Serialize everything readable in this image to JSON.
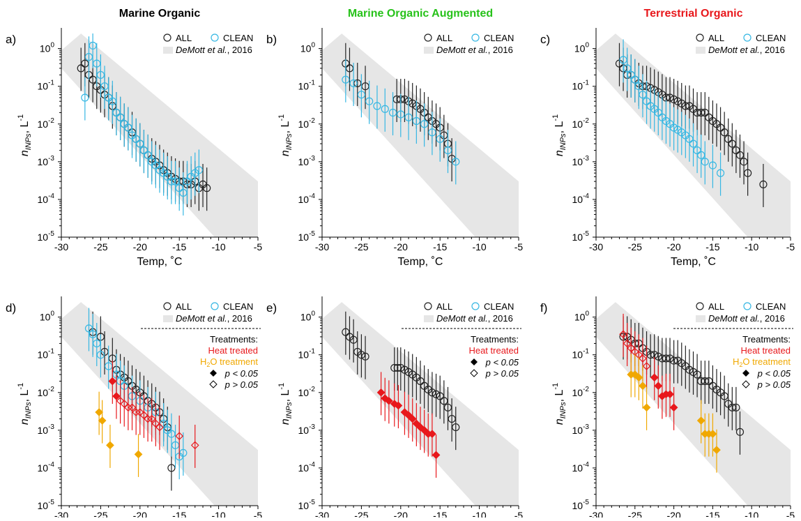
{
  "colors": {
    "all": "#222222",
    "clean": "#35b7e3",
    "heat": "#e8181c",
    "h2o2": "#f0a800",
    "band": "#e6e6e6",
    "title_green": "#27c21a",
    "title_red": "#e8181c",
    "title_black": "#000000"
  },
  "titles": {
    "col1": "Marine Organic",
    "col2": "Marine Organic Augmented",
    "col3": "Terrestrial  Organic"
  },
  "legend": {
    "all": "ALL",
    "clean": "CLEAN",
    "demott_name": "DeMott et al.",
    "demott_year": ", 2016",
    "treatments": "Treatments:",
    "heat": "Heat treated",
    "h2o2_prefix": "H",
    "h2o2_sub": "2",
    "h2o2_mid": "O",
    "h2o2_suffix": " treatment",
    "p_sig": "p < 0.05",
    "p_ns": "p > 0.05"
  },
  "axes": {
    "xlabel": "Temp, ˚C",
    "ylabel_n": "n",
    "ylabel_sub": "INPs",
    "ylabel_unit": ", L",
    "ylabel_exp": "-1",
    "xticks": [
      -30,
      -25,
      -20,
      -15,
      -10,
      -5
    ],
    "yticks": [
      "10",
      "10",
      "10",
      "10",
      "10",
      "10"
    ],
    "yexps": [
      "0",
      "-1",
      "-2",
      "-3",
      "-4",
      "-5"
    ]
  },
  "chart_data": [
    {
      "panel": "a)",
      "title": "Marine Organic",
      "type": "scatter",
      "xlim": [
        -30,
        -5
      ],
      "ylim_log10": [
        -5,
        0.4
      ],
      "yscale": "log",
      "band_demott": {
        "upper": [
          [
            -30,
            1.5
          ],
          [
            -11,
            0.0003
          ]
        ],
        "lower": [
          [
            -26,
            1e-05
          ],
          [
            -29,
            0.1
          ]
        ]
      },
      "series": [
        {
          "name": "ALL",
          "marker": "open-circle",
          "x": [
            -27.5,
            -27,
            -26.5,
            -26,
            -25.5,
            -25,
            -24.5,
            -24,
            -23.5,
            -23,
            -22.5,
            -22,
            -21.5,
            -21,
            -20.5,
            -20,
            -19.5,
            -19,
            -18.5,
            -18,
            -17.5,
            -17,
            -16.5,
            -16,
            -15.5,
            -15,
            -14.5,
            -14,
            -13.5,
            -13,
            -12.5,
            -12,
            -11.5
          ],
          "y": [
            0.3,
            0.4,
            0.2,
            0.15,
            0.1,
            0.08,
            0.06,
            0.05,
            0.03,
            0.02,
            0.015,
            0.01,
            0.008,
            0.006,
            0.004,
            0.003,
            0.002,
            0.0015,
            0.0012,
            0.001,
            0.0008,
            0.0006,
            0.0005,
            0.0004,
            0.00035,
            0.0003,
            0.0003,
            0.00025,
            0.00025,
            0.0003,
            0.0002,
            0.00025,
            0.0002
          ]
        },
        {
          "name": "CLEAN",
          "marker": "open-circle",
          "x": [
            -27,
            -26.5,
            -26,
            -25.5,
            -25,
            -24.5,
            -24,
            -23.5,
            -23,
            -22.5,
            -22,
            -21.5,
            -21,
            -20.5,
            -20,
            -19.5,
            -19,
            -18.5,
            -18,
            -17.5,
            -17,
            -16.5,
            -16,
            -15.5,
            -15,
            -14.5,
            -14,
            -13.5,
            -13,
            -12.5
          ],
          "y": [
            0.05,
            0.6,
            1.2,
            0.4,
            0.2,
            0.1,
            0.05,
            0.04,
            0.02,
            0.015,
            0.01,
            0.008,
            0.005,
            0.004,
            0.003,
            0.002,
            0.0015,
            0.001,
            0.0008,
            0.0006,
            0.0005,
            0.0004,
            0.0003,
            0.0003,
            0.0002,
            0.00015,
            0.0003,
            0.0004,
            0.0005,
            0.0006
          ]
        }
      ]
    },
    {
      "panel": "b)",
      "title": "Marine Organic Augmented",
      "type": "scatter",
      "xlim": [
        -30,
        -5
      ],
      "ylim_log10": [
        -5,
        0.4
      ],
      "yscale": "log",
      "series": [
        {
          "name": "ALL",
          "marker": "open-circle",
          "x": [
            -27,
            -26.5,
            -25.5,
            -24.5,
            -20.5,
            -20,
            -19.5,
            -19,
            -18.5,
            -18,
            -17.5,
            -17,
            -16.5,
            -16,
            -15.5,
            -15,
            -14.5,
            -14,
            -13.5
          ],
          "y": [
            0.4,
            0.3,
            0.12,
            0.1,
            0.045,
            0.045,
            0.045,
            0.04,
            0.035,
            0.03,
            0.025,
            0.02,
            0.015,
            0.012,
            0.01,
            0.008,
            0.005,
            0.003,
            0.0012
          ]
        },
        {
          "name": "CLEAN",
          "marker": "open-circle",
          "x": [
            -27,
            -26,
            -25,
            -24,
            -23,
            -22,
            -21,
            -20,
            -19,
            -18,
            -17,
            -16,
            -15,
            -14,
            -13
          ],
          "y": [
            0.15,
            0.12,
            0.06,
            0.04,
            0.03,
            0.025,
            0.02,
            0.018,
            0.015,
            0.012,
            0.01,
            0.006,
            0.004,
            0.002,
            0.001
          ]
        }
      ]
    },
    {
      "panel": "c)",
      "title": "Terrestrial  Organic",
      "type": "scatter",
      "xlim": [
        -30,
        -5
      ],
      "ylim_log10": [
        -5,
        0.4
      ],
      "yscale": "log",
      "series": [
        {
          "name": "ALL",
          "marker": "open-circle",
          "x": [
            -27,
            -26.5,
            -26,
            -25.5,
            -25,
            -24.5,
            -24,
            -23.5,
            -23,
            -22.5,
            -22,
            -21.5,
            -21,
            -20.5,
            -20,
            -19.5,
            -19,
            -18.5,
            -18,
            -17.5,
            -17,
            -16.5,
            -16,
            -15.5,
            -15,
            -14.5,
            -14,
            -13.5,
            -13,
            -12.5,
            -12,
            -11.5,
            -11,
            -10.5,
            -8.5
          ],
          "y": [
            0.4,
            0.3,
            0.2,
            0.2,
            0.15,
            0.12,
            0.1,
            0.1,
            0.09,
            0.08,
            0.07,
            0.06,
            0.05,
            0.05,
            0.045,
            0.04,
            0.035,
            0.03,
            0.03,
            0.025,
            0.02,
            0.02,
            0.02,
            0.015,
            0.012,
            0.01,
            0.008,
            0.006,
            0.004,
            0.003,
            0.002,
            0.0015,
            0.001,
            0.0005,
            0.00025
          ]
        },
        {
          "name": "CLEAN",
          "marker": "open-circle",
          "x": [
            -26.5,
            -26,
            -25.5,
            -25,
            -24.5,
            -24,
            -23.5,
            -23,
            -22.5,
            -22,
            -21.5,
            -21,
            -20.5,
            -20,
            -19.5,
            -19,
            -18.5,
            -18,
            -17.5,
            -17,
            -16.5,
            -16,
            -15,
            -14
          ],
          "y": [
            0.5,
            0.3,
            0.2,
            0.15,
            0.1,
            0.06,
            0.04,
            0.03,
            0.025,
            0.02,
            0.015,
            0.012,
            0.01,
            0.008,
            0.007,
            0.006,
            0.005,
            0.004,
            0.003,
            0.002,
            0.0015,
            0.001,
            0.0008,
            0.0005
          ]
        }
      ]
    },
    {
      "panel": "d)",
      "type": "scatter",
      "xlim": [
        -30,
        -5
      ],
      "ylim_log10": [
        -5,
        0.4
      ],
      "yscale": "log",
      "series": [
        {
          "name": "ALL",
          "marker": "open-circle",
          "x": [
            -26,
            -25,
            -24.5,
            -23.5,
            -23,
            -22.5,
            -22,
            -21.5,
            -21,
            -20.5,
            -20,
            -19.5,
            -19,
            -18.5,
            -18,
            -17.5,
            -17,
            -16.5,
            -16
          ],
          "y": [
            0.4,
            0.3,
            0.12,
            0.08,
            0.04,
            0.03,
            0.025,
            0.02,
            0.015,
            0.012,
            0.01,
            0.008,
            0.006,
            0.005,
            0.004,
            0.003,
            0.002,
            0.0012,
            0.0001
          ]
        },
        {
          "name": "CLEAN",
          "marker": "open-circle",
          "x": [
            -26.5,
            -26,
            -25.5,
            -25,
            -24,
            -23,
            -22.5,
            -22,
            -21,
            -20,
            -19,
            -18,
            -17,
            -16.5,
            -16,
            -15.5,
            -15,
            -14.5
          ],
          "y": [
            0.5,
            0.35,
            0.2,
            0.1,
            0.05,
            0.03,
            0.02,
            0.015,
            0.008,
            0.006,
            0.004,
            0.003,
            0.0015,
            0.001,
            0.0008,
            0.0004,
            0.0002,
            0.00025
          ]
        },
        {
          "name": "Heat treated",
          "marker": "diamond",
          "x": [
            -23.5,
            -23,
            -22.5,
            -22,
            -21.5,
            -21,
            -20.5,
            -20,
            -19.5,
            -19,
            -18.5,
            -18,
            -17.5,
            -15,
            -13
          ],
          "y": [
            0.02,
            0.008,
            0.006,
            0.005,
            0.004,
            0.004,
            0.003,
            0.003,
            0.0025,
            0.002,
            0.002,
            0.0015,
            0.0012,
            0.0007,
            0.0004
          ],
          "filled": [
            true,
            true,
            false,
            false,
            false,
            false,
            false,
            false,
            false,
            false,
            false,
            false,
            false,
            false,
            false
          ]
        },
        {
          "name": "H2O2 treatment",
          "marker": "diamond",
          "x": [
            -25.2,
            -24.8,
            -23.8,
            -20.2
          ],
          "y": [
            0.003,
            0.0018,
            0.0004,
            0.00023
          ],
          "filled": [
            true,
            true,
            true,
            true
          ]
        }
      ]
    },
    {
      "panel": "e)",
      "type": "scatter",
      "xlim": [
        -30,
        -5
      ],
      "ylim_log10": [
        -5,
        0.4
      ],
      "yscale": "log",
      "series": [
        {
          "name": "ALL",
          "marker": "open-circle",
          "x": [
            -27,
            -26.5,
            -26,
            -25.5,
            -25,
            -24.5,
            -20.8,
            -20.4,
            -20,
            -19.5,
            -19,
            -18.5,
            -18,
            -17.5,
            -17,
            -16.5,
            -16,
            -15.5,
            -15,
            -14.5,
            -14,
            -13.5,
            -13
          ],
          "y": [
            0.4,
            0.3,
            0.25,
            0.12,
            0.1,
            0.09,
            0.045,
            0.045,
            0.045,
            0.04,
            0.035,
            0.03,
            0.025,
            0.02,
            0.015,
            0.012,
            0.01,
            0.009,
            0.008,
            0.006,
            0.004,
            0.002,
            0.0012
          ]
        },
        {
          "name": "Heat treated",
          "marker": "diamond",
          "x": [
            -22.5,
            -22,
            -21.5,
            -20.8,
            -20.3,
            -19.5,
            -19,
            -18.5,
            -18,
            -17.5,
            -17,
            -16.5,
            -16,
            -15.5
          ],
          "y": [
            0.01,
            0.007,
            0.006,
            0.005,
            0.0045,
            0.003,
            0.0025,
            0.002,
            0.0015,
            0.0012,
            0.001,
            0.0008,
            0.0008,
            0.00022
          ],
          "filled": [
            true,
            true,
            true,
            true,
            true,
            true,
            true,
            true,
            true,
            true,
            true,
            true,
            true,
            true
          ]
        }
      ]
    },
    {
      "panel": "f)",
      "type": "scatter",
      "xlim": [
        -30,
        -5
      ],
      "ylim_log10": [
        -5,
        0.4
      ],
      "yscale": "log",
      "series": [
        {
          "name": "ALL",
          "marker": "open-circle",
          "x": [
            -26.5,
            -26,
            -25.5,
            -25,
            -24.5,
            -24,
            -23.5,
            -23,
            -22.5,
            -22,
            -21.5,
            -21,
            -20.5,
            -20,
            -19.5,
            -19,
            -18.5,
            -18,
            -17.5,
            -17,
            -16.5,
            -16,
            -15.5,
            -15,
            -14.5,
            -14,
            -13.5,
            -13,
            -12.5,
            -12,
            -11.5
          ],
          "y": [
            0.3,
            0.3,
            0.25,
            0.2,
            0.2,
            0.15,
            0.12,
            0.1,
            0.1,
            0.09,
            0.08,
            0.08,
            0.08,
            0.07,
            0.07,
            0.06,
            0.05,
            0.04,
            0.035,
            0.03,
            0.02,
            0.02,
            0.02,
            0.015,
            0.012,
            0.01,
            0.008,
            0.005,
            0.004,
            0.004,
            0.0009
          ]
        },
        {
          "name": "Heat treated",
          "marker": "diamond",
          "x": [
            -26.5,
            -26,
            -25.5,
            -25,
            -24.5,
            -24,
            -23.5,
            -22.5,
            -22,
            -21.5,
            -21,
            -20.5,
            -20
          ],
          "y": [
            0.35,
            0.2,
            0.15,
            0.12,
            0.1,
            0.08,
            0.05,
            0.025,
            0.015,
            0.008,
            0.009,
            0.009,
            0.004
          ],
          "filled": [
            false,
            false,
            false,
            false,
            false,
            false,
            false,
            true,
            true,
            true,
            true,
            true,
            true
          ]
        },
        {
          "name": "H2O2 treatment",
          "marker": "diamond",
          "x": [
            -25.5,
            -25,
            -24.5,
            -24,
            -23.5,
            -16.5,
            -16,
            -15.5,
            -15,
            -14.5
          ],
          "y": [
            0.03,
            0.03,
            0.025,
            0.015,
            0.004,
            0.0018,
            0.0008,
            0.0008,
            0.0008,
            0.0003
          ],
          "filled": [
            true,
            true,
            true,
            true,
            true,
            true,
            true,
            true,
            true,
            true
          ]
        }
      ]
    }
  ]
}
